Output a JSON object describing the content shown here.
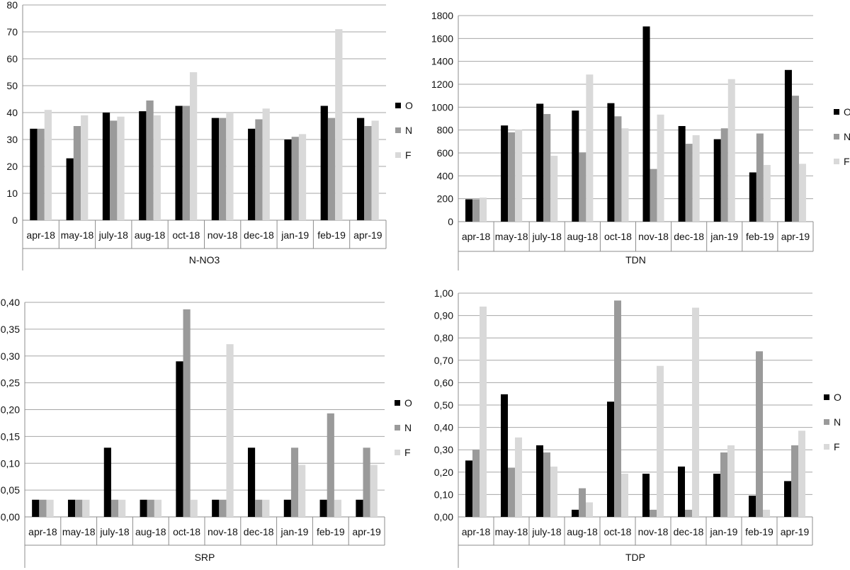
{
  "colors": {
    "O": "#000000",
    "N": "#9a9a9a",
    "F": "#d9d9d9",
    "grid": "#a6a6a6",
    "axis": "#8c8c8c"
  },
  "chart_data": [
    {
      "type": "bar",
      "xlabel": "N-NO3",
      "categories": [
        "apr-18",
        "may-18",
        "july-18",
        "aug-18",
        "oct-18",
        "nov-18",
        "dec-18",
        "jan-19",
        "feb-19",
        "apr-19"
      ],
      "ylim": [
        0,
        80
      ],
      "yticks": [
        "0",
        "10",
        "20",
        "30",
        "40",
        "50",
        "60",
        "70",
        "80"
      ],
      "grid": true,
      "legend_position": "right",
      "series": [
        {
          "name": "O",
          "values": [
            34,
            23,
            40,
            40.5,
            42.5,
            38,
            34,
            30,
            42.5,
            38
          ]
        },
        {
          "name": "N",
          "values": [
            34,
            35,
            37,
            44.5,
            42.5,
            38,
            37.5,
            31,
            38,
            35
          ]
        },
        {
          "name": "F",
          "values": [
            41,
            39,
            38.5,
            39,
            55,
            40,
            41.5,
            32,
            71,
            37
          ]
        }
      ]
    },
    {
      "type": "bar",
      "xlabel": "TDN",
      "categories": [
        "apr-18",
        "may-18",
        "july-18",
        "aug-18",
        "oct-18",
        "nov-18",
        "dec-18",
        "jan-19",
        "feb-19",
        "apr-19"
      ],
      "ylim": [
        0,
        1800
      ],
      "yticks": [
        "0",
        "200",
        "400",
        "600",
        "800",
        "1000",
        "1200",
        "1400",
        "1600",
        "1800"
      ],
      "grid": true,
      "legend_position": "right",
      "series": [
        {
          "name": "O",
          "values": [
            195,
            840,
            1030,
            970,
            1035,
            1705,
            835,
            720,
            430,
            1325
          ]
        },
        {
          "name": "N",
          "values": [
            195,
            780,
            940,
            605,
            920,
            460,
            680,
            815,
            770,
            1100
          ]
        },
        {
          "name": "F",
          "values": [
            210,
            805,
            575,
            1285,
            815,
            935,
            755,
            1245,
            495,
            505
          ]
        }
      ]
    },
    {
      "type": "bar",
      "xlabel": "SRP",
      "categories": [
        "apr-18",
        "may-18",
        "july-18",
        "aug-18",
        "oct-18",
        "nov-18",
        "dec-18",
        "jan-19",
        "feb-19",
        "apr-19"
      ],
      "ylim": [
        0,
        0.4
      ],
      "yticks": [
        "0,00",
        "0,05",
        "0,10",
        "0,15",
        "0,20",
        "0,25",
        "0,30",
        "0,35",
        "0,40"
      ],
      "grid": true,
      "legend_position": "right",
      "series": [
        {
          "name": "O",
          "values": [
            0.032,
            0.032,
            0.129,
            0.032,
            0.29,
            0.032,
            0.129,
            0.032,
            0.032,
            0.032
          ]
        },
        {
          "name": "N",
          "values": [
            0.032,
            0.032,
            0.032,
            0.032,
            0.387,
            0.032,
            0.032,
            0.129,
            0.193,
            0.129
          ]
        },
        {
          "name": "F",
          "values": [
            0.032,
            0.032,
            0.032,
            0.032,
            0.032,
            0.322,
            0.032,
            0.097,
            0.032,
            0.097
          ]
        }
      ]
    },
    {
      "type": "bar",
      "xlabel": "TDP",
      "categories": [
        "apr-18",
        "may-18",
        "july-18",
        "aug-18",
        "oct-18",
        "nov-18",
        "dec-18",
        "jan-19",
        "feb-19",
        "apr-19"
      ],
      "ylim": [
        0,
        1
      ],
      "yticks": [
        "0,00",
        "0,10",
        "0,20",
        "0,30",
        "0,40",
        "0,50",
        "0,60",
        "0,70",
        "0,80",
        "0,90",
        "1,00"
      ],
      "grid": true,
      "legend_position": "right",
      "series": [
        {
          "name": "O",
          "values": [
            0.252,
            0.548,
            0.32,
            0.032,
            0.515,
            0.193,
            0.225,
            0.193,
            0.095,
            0.16
          ]
        },
        {
          "name": "N",
          "values": [
            0.3,
            0.22,
            0.288,
            0.128,
            0.967,
            0.032,
            0.032,
            0.288,
            0.74,
            0.32
          ]
        },
        {
          "name": "F",
          "values": [
            0.94,
            0.355,
            0.225,
            0.065,
            0.193,
            0.675,
            0.935,
            0.32,
            0.032,
            0.385
          ]
        }
      ]
    }
  ]
}
